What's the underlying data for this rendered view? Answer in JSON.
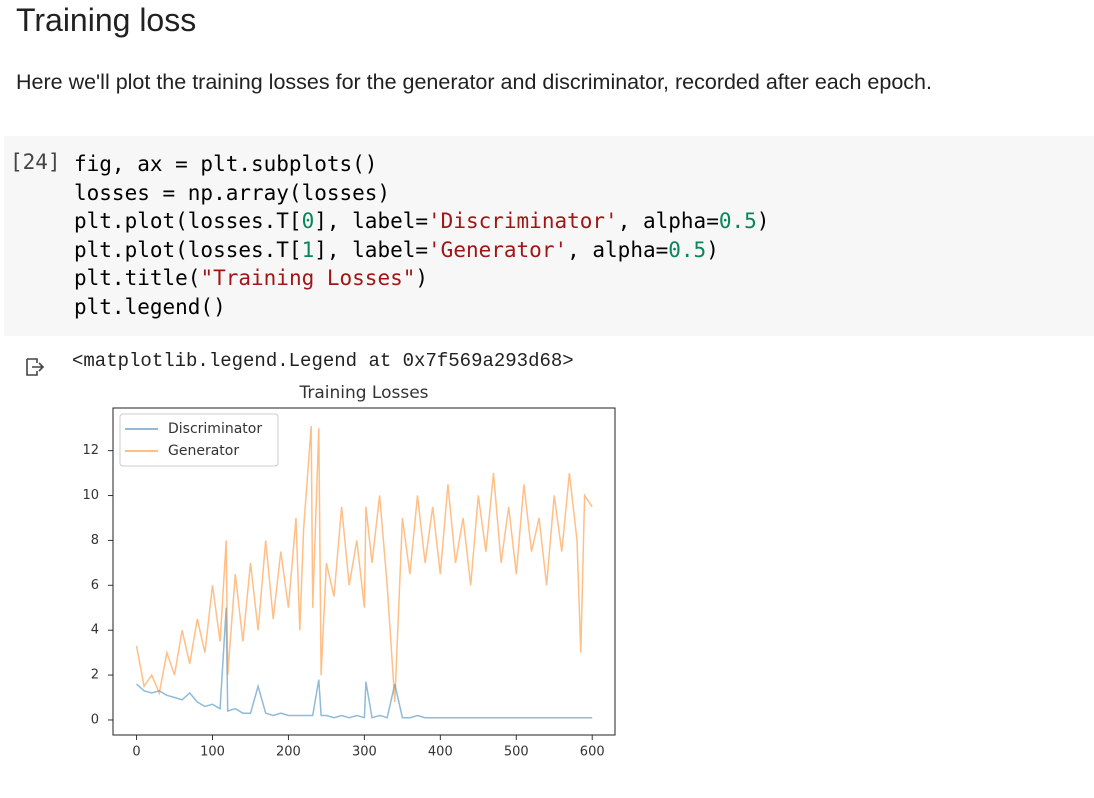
{
  "heading": "Training loss",
  "paragraph": "Here we'll plot the training losses for the generator and discriminator, recorded after each epoch.",
  "code_cell": {
    "prompt": "[24]",
    "lines": [
      [
        "fig, ax = plt.subplots()"
      ],
      [
        "losses = np.array(losses)"
      ],
      [
        "plt.plot(losses.T[",
        {
          "text": "0",
          "color": "#098658"
        },
        "], label=",
        {
          "text": "'Discriminator'",
          "color": "#a31515"
        },
        ", alpha=",
        {
          "text": "0.5",
          "color": "#098658"
        },
        ")"
      ],
      [
        "plt.plot(losses.T[",
        {
          "text": "1",
          "color": "#098658"
        },
        "], label=",
        {
          "text": "'Generator'",
          "color": "#a31515"
        },
        ", alpha=",
        {
          "text": "0.5",
          "color": "#098658"
        },
        ")"
      ],
      [
        "plt.title(",
        {
          "text": "\"Training Losses\"",
          "color": "#a31515"
        },
        ")"
      ],
      [
        "plt.legend()"
      ]
    ]
  },
  "output": {
    "text": "<matplotlib.legend.Legend at 0x7f569a293d68>"
  },
  "chart_data": {
    "type": "line",
    "title": "Training Losses",
    "x": [
      0,
      10,
      20,
      30,
      40,
      50,
      60,
      70,
      80,
      90,
      100,
      110,
      118,
      120,
      130,
      140,
      150,
      160,
      170,
      180,
      190,
      200,
      210,
      215,
      220,
      230,
      232,
      240,
      243,
      250,
      260,
      270,
      280,
      290,
      300,
      302,
      310,
      320,
      330,
      340,
      350,
      360,
      370,
      380,
      390,
      400,
      410,
      420,
      430,
      440,
      450,
      460,
      470,
      480,
      490,
      500,
      510,
      520,
      530,
      540,
      550,
      560,
      570,
      580,
      585,
      590,
      600
    ],
    "series": [
      {
        "name": "Discriminator",
        "color": "#1f77b4",
        "alpha": 0.5,
        "values": [
          1.6,
          1.3,
          1.2,
          1.3,
          1.1,
          1.0,
          0.9,
          1.2,
          0.8,
          0.6,
          0.7,
          0.5,
          5.0,
          0.4,
          0.5,
          0.3,
          0.3,
          1.5,
          0.3,
          0.2,
          0.3,
          0.2,
          0.2,
          0.2,
          0.2,
          0.2,
          0.2,
          1.8,
          0.2,
          0.2,
          0.1,
          0.2,
          0.1,
          0.2,
          0.1,
          1.7,
          0.1,
          0.2,
          0.1,
          1.6,
          0.1,
          0.1,
          0.2,
          0.1,
          0.1,
          0.1,
          0.1,
          0.1,
          0.1,
          0.1,
          0.1,
          0.1,
          0.1,
          0.1,
          0.1,
          0.1,
          0.1,
          0.1,
          0.1,
          0.1,
          0.1,
          0.1,
          0.1,
          0.1,
          0.1,
          0.1,
          0.1
        ]
      },
      {
        "name": "Generator",
        "color": "#ff7f0e",
        "alpha": 0.5,
        "values": [
          3.3,
          1.5,
          2.0,
          1.2,
          3.0,
          2.0,
          4.0,
          2.5,
          4.5,
          3.0,
          6.0,
          3.5,
          8.0,
          2.0,
          6.5,
          3.5,
          7.0,
          4.0,
          8.0,
          4.5,
          7.5,
          5.0,
          9.0,
          4.0,
          8.5,
          13.1,
          5.0,
          13.0,
          2.0,
          7.0,
          5.5,
          9.5,
          6.0,
          8.0,
          5.0,
          9.5,
          7.0,
          10.0,
          6.0,
          0.8,
          9.0,
          6.5,
          10.0,
          7.0,
          9.5,
          6.5,
          10.5,
          7.0,
          9.0,
          6.0,
          10.0,
          7.5,
          11.0,
          7.0,
          9.5,
          6.5,
          10.5,
          7.5,
          9.0,
          6.0,
          10.0,
          7.5,
          11.0,
          8.0,
          3.0,
          10.0,
          9.5
        ]
      }
    ],
    "xlim": [
      -31,
      630
    ],
    "ylim": [
      -0.67,
      13.9
    ],
    "xticks": [
      0,
      100,
      200,
      300,
      400,
      500,
      600
    ],
    "yticks": [
      0,
      2,
      4,
      6,
      8,
      10,
      12
    ],
    "legend": "upper left"
  }
}
